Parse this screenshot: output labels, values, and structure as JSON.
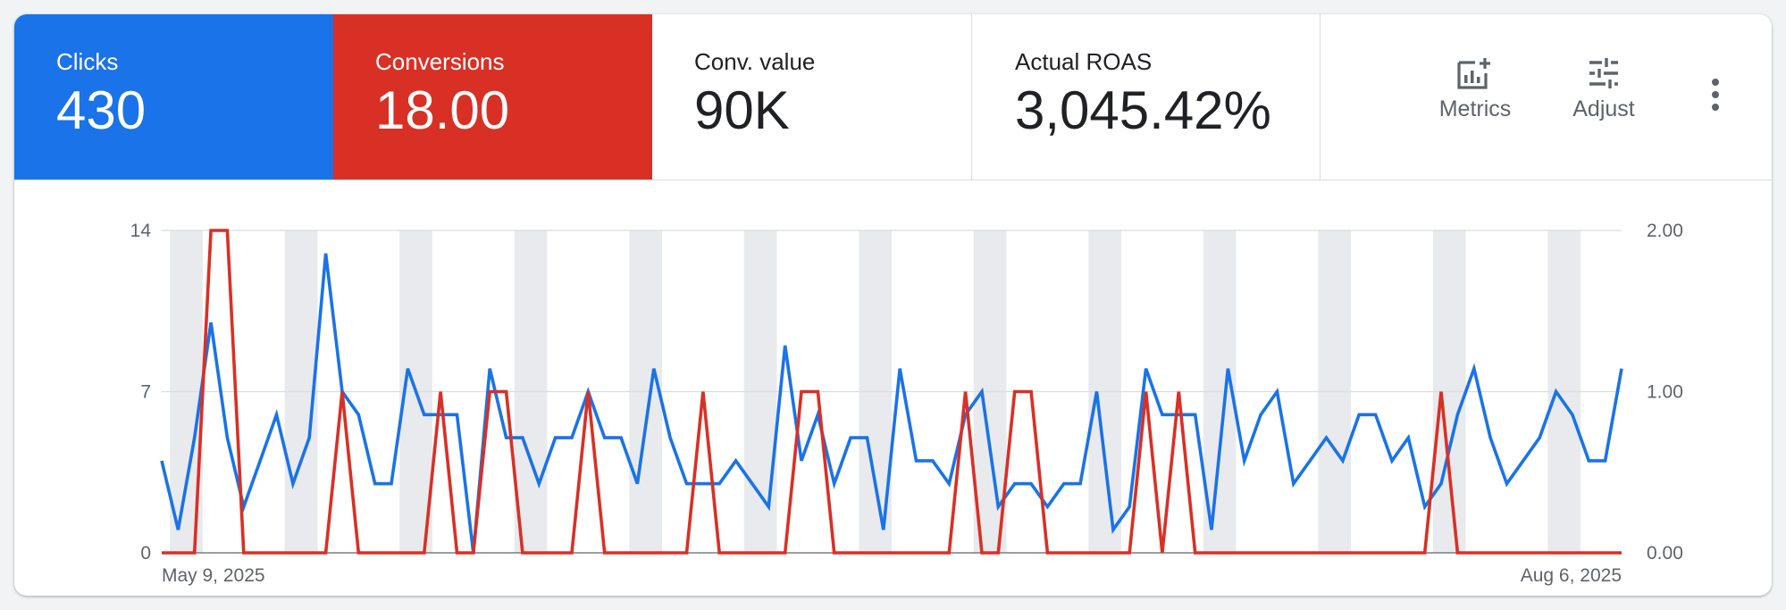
{
  "scorecards": [
    {
      "label": "Clicks",
      "value": "430"
    },
    {
      "label": "Conversions",
      "value": "18.00"
    },
    {
      "label": "Conv. value",
      "value": "90K"
    },
    {
      "label": "Actual ROAS",
      "value": "3,045.42%"
    }
  ],
  "tools": {
    "metrics_label": "Metrics",
    "adjust_label": "Adjust",
    "metrics_icon": "add-chart-icon",
    "adjust_icon": "tune-sliders-icon",
    "more_icon": "more-vert-icon"
  },
  "colors": {
    "clicks": "#1a73e8",
    "conversions": "#d93025",
    "weekend_band": "#e8eaed",
    "grid": "#dadce0"
  },
  "chart_data": {
    "type": "line",
    "x_start_label": "May 9, 2025",
    "x_end_label": "Aug 6, 2025",
    "x_start": "2025-05-09",
    "x_end": "2025-08-06",
    "left_axis": {
      "ticks": [
        "0",
        "7",
        "14"
      ],
      "ylim": [
        0,
        14
      ]
    },
    "right_axis": {
      "ticks": [
        "0.00",
        "1.00",
        "2.00"
      ],
      "ylim": [
        0,
        2
      ]
    },
    "grid": true,
    "weekend_bands": true,
    "series": [
      {
        "name": "Clicks",
        "axis": "left",
        "values": [
          4,
          1,
          5,
          10,
          5,
          2,
          4,
          6,
          3,
          5,
          13,
          7,
          6,
          3,
          3,
          8,
          6,
          6,
          6,
          0,
          8,
          5,
          5,
          3,
          5,
          5,
          7,
          5,
          5,
          3,
          8,
          5,
          3,
          3,
          3,
          4,
          3,
          2,
          9,
          4,
          6,
          3,
          5,
          5,
          1,
          8,
          4,
          4,
          3,
          6,
          7,
          2,
          3,
          3,
          2,
          3,
          3,
          7,
          1,
          2,
          8,
          6,
          6,
          6,
          1,
          8,
          4,
          6,
          7,
          3,
          4,
          5,
          4,
          6,
          6,
          4,
          5,
          2,
          3,
          6,
          8,
          5,
          3,
          4,
          5,
          7,
          6,
          4,
          4,
          8
        ]
      },
      {
        "name": "Conversions",
        "axis": "right",
        "values": [
          0,
          0,
          0,
          2,
          2,
          0,
          0,
          0,
          0,
          0,
          0,
          1,
          0,
          0,
          0,
          0,
          0,
          1,
          0,
          0,
          1,
          1,
          0,
          0,
          0,
          0,
          1,
          0,
          0,
          0,
          0,
          0,
          0,
          1,
          0,
          0,
          0,
          0,
          0,
          1,
          1,
          0,
          0,
          0,
          0,
          0,
          0,
          0,
          0,
          1,
          0,
          0,
          1,
          1,
          0,
          0,
          0,
          0,
          0,
          0,
          1,
          0,
          1,
          0,
          0,
          0,
          0,
          0,
          0,
          0,
          0,
          0,
          0,
          0,
          0,
          0,
          0,
          0,
          1,
          0,
          0,
          0,
          0,
          0,
          0,
          0,
          0,
          0,
          0,
          0
        ]
      }
    ]
  }
}
